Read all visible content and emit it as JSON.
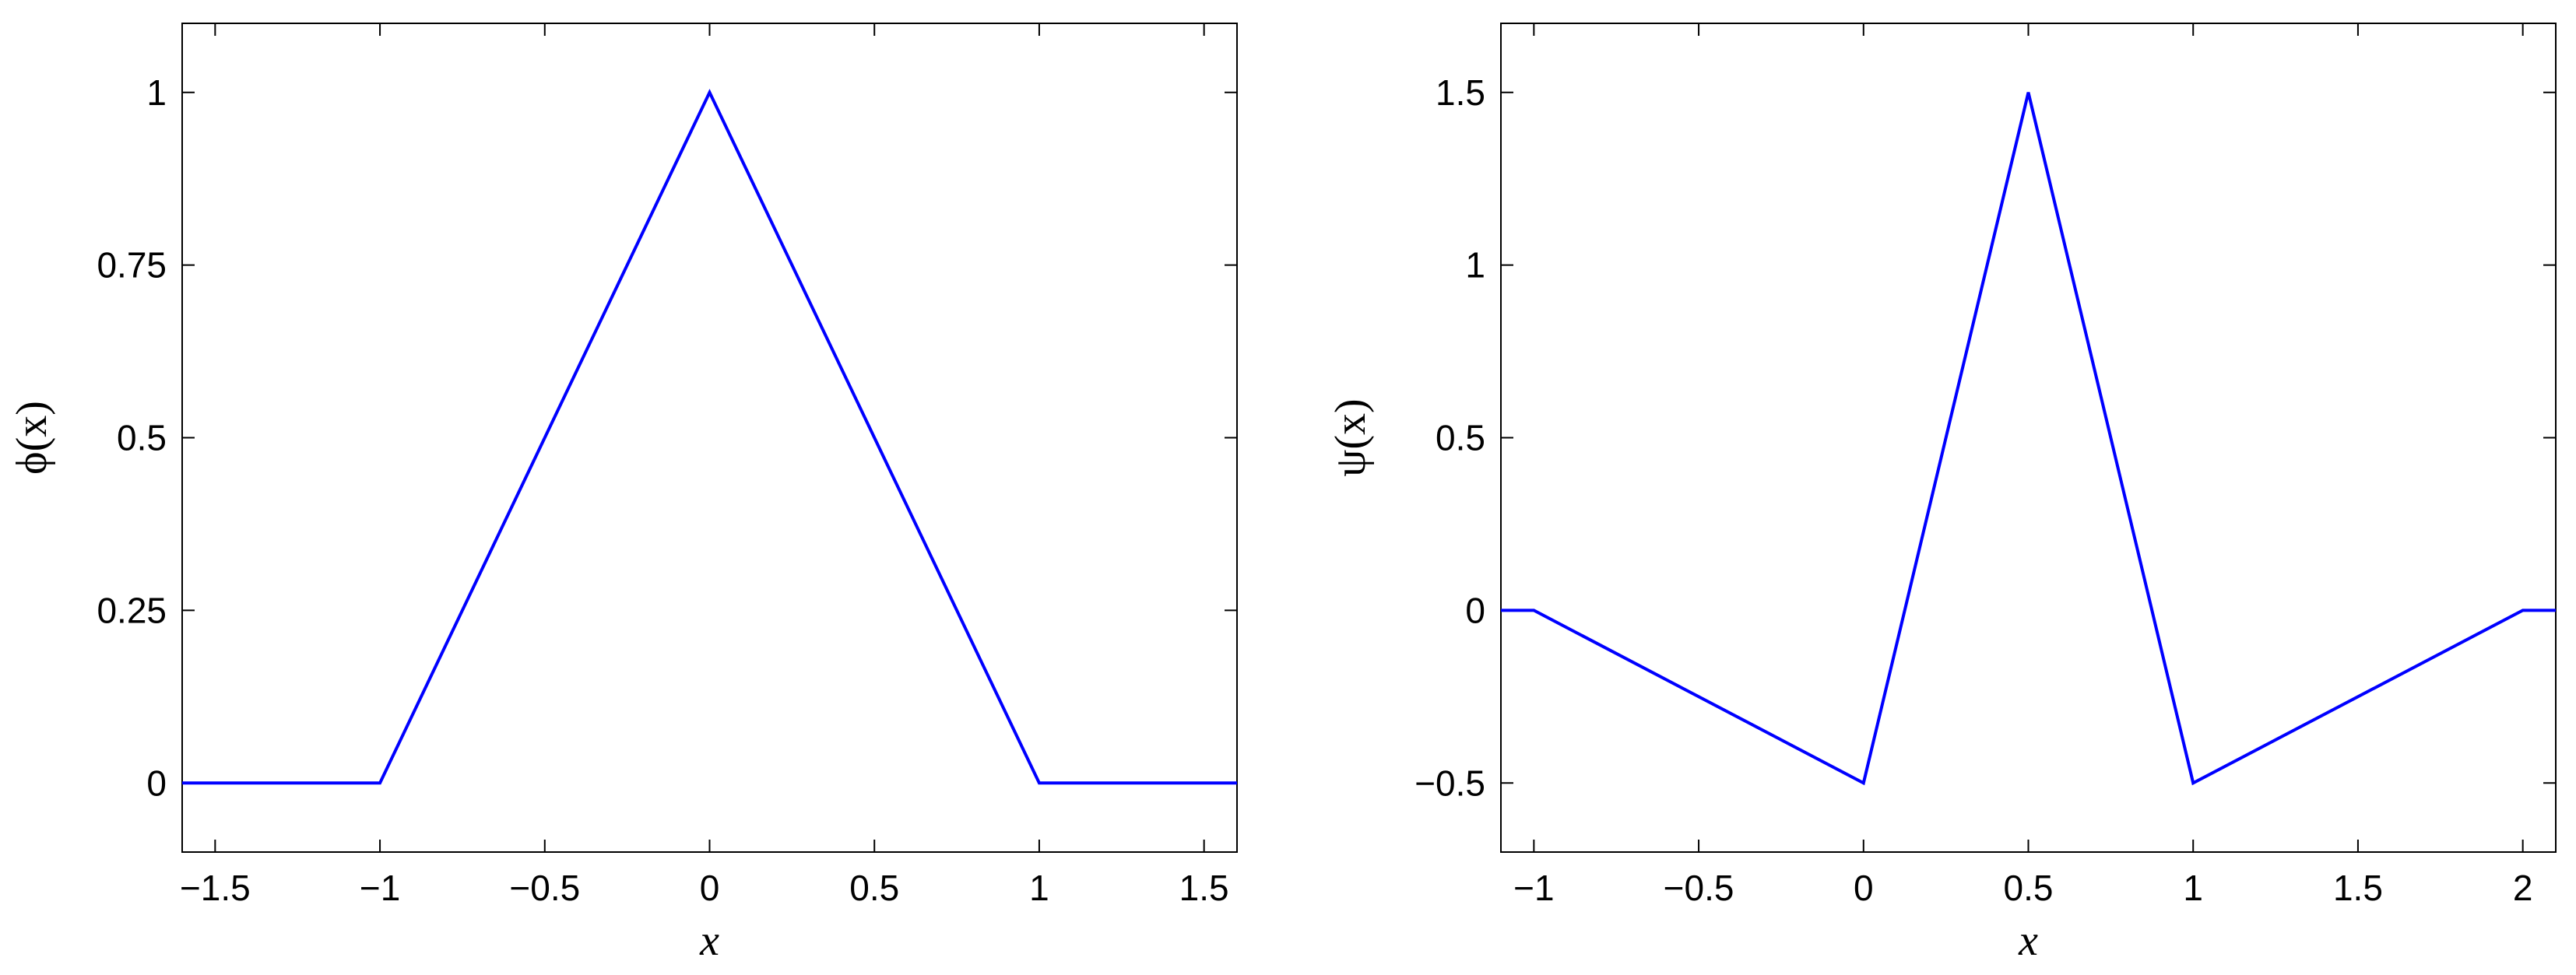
{
  "chart_data": [
    {
      "type": "line",
      "xlabel": "x",
      "ylabel": "ϕ(x)",
      "xlim": [
        -1.6,
        1.6
      ],
      "ylim": [
        -0.1,
        1.1
      ],
      "xticks": [
        -1.5,
        -1,
        -0.5,
        0,
        0.5,
        1,
        1.5
      ],
      "xtick_labels": [
        "−1.5",
        "−1",
        "−0.5",
        "0",
        "0.5",
        "1",
        "1.5"
      ],
      "yticks": [
        0,
        0.25,
        0.5,
        0.75,
        1
      ],
      "ytick_labels": [
        "0",
        "0.25",
        "0.5",
        "0.75",
        "1"
      ],
      "grid": false,
      "color": "#0000ff",
      "series": [
        {
          "x": [
            -1.6,
            -1,
            0,
            1,
            1.6
          ],
          "y": [
            0,
            0,
            1,
            0,
            0
          ]
        }
      ]
    },
    {
      "type": "line",
      "xlabel": "x",
      "ylabel": "ψ(x)",
      "xlim": [
        -1.1,
        2.1
      ],
      "ylim": [
        -0.7,
        1.7
      ],
      "xticks": [
        -1,
        -0.5,
        0,
        0.5,
        1,
        1.5,
        2
      ],
      "xtick_labels": [
        "−1",
        "−0.5",
        "0",
        "0.5",
        "1",
        "1.5",
        "2"
      ],
      "yticks": [
        -0.5,
        0,
        0.5,
        1,
        1.5
      ],
      "ytick_labels": [
        "−0.5",
        "0",
        "0.5",
        "1",
        "1.5"
      ],
      "grid": false,
      "color": "#0000ff",
      "series": [
        {
          "x": [
            -1.1,
            -1,
            0,
            0.5,
            1,
            2,
            2.1
          ],
          "y": [
            0,
            0,
            -0.5,
            1.5,
            -0.5,
            0,
            0
          ]
        }
      ]
    }
  ]
}
